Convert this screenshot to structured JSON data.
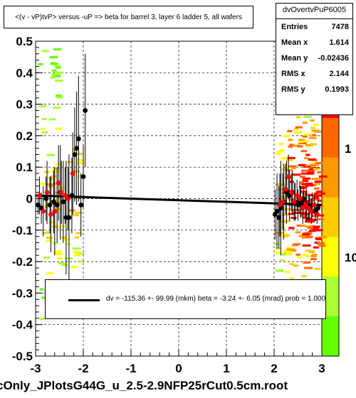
{
  "chart_data": {
    "type": "scatter",
    "title": "<(v - vP)tvP> versus  -uP => beta for barrel 3, layer 6 ladder 5, all  wafers",
    "xlim": [
      -3,
      3
    ],
    "ylim": [
      -0.5,
      0.5
    ],
    "x_ticks": [
      "-3",
      "-2",
      "-1",
      "0",
      "1",
      "2",
      "3"
    ],
    "y_ticks": [
      "-0.5",
      "-0.4",
      "-0.3",
      "-0.2",
      "-0.1",
      "0",
      "0.1",
      "0.2",
      "0.3",
      "0.4",
      "0.5"
    ],
    "z_tick_labels": [
      "1",
      "10"
    ],
    "grid": true,
    "series": [
      {
        "color": "#000000",
        "points": [
          [
            -2.95,
            -0.02
          ],
          [
            -2.88,
            -0.03
          ],
          [
            -2.78,
            0.0
          ],
          [
            -2.7,
            -0.02
          ],
          [
            -2.62,
            -0.01
          ],
          [
            -2.55,
            -0.02
          ],
          [
            -2.48,
            0.02
          ],
          [
            -2.42,
            -0.01
          ],
          [
            -2.36,
            -0.06
          ],
          [
            -2.3,
            -0.06
          ],
          [
            -2.24,
            0.01
          ],
          [
            -2.18,
            0.14
          ],
          [
            -2.14,
            0.16
          ],
          [
            -2.1,
            0.19
          ],
          [
            -2.05,
            -0.02
          ],
          [
            -2.0,
            0.07
          ],
          [
            -1.96,
            0.28
          ],
          [
            2.02,
            -0.05
          ],
          [
            2.06,
            -0.04
          ],
          [
            2.1,
            -0.06
          ],
          [
            2.14,
            -0.03
          ],
          [
            2.2,
            -0.01
          ],
          [
            2.26,
            0.02
          ],
          [
            2.32,
            0.01
          ],
          [
            2.38,
            0.02
          ],
          [
            2.44,
            -0.01
          ],
          [
            2.5,
            -0.02
          ],
          [
            2.56,
            -0.01
          ],
          [
            2.62,
            0.0
          ],
          [
            2.68,
            -0.02
          ],
          [
            2.74,
            -0.03
          ],
          [
            2.8,
            -0.02
          ],
          [
            2.86,
            -0.04
          ],
          [
            2.92,
            -0.03
          ]
        ],
        "errors": [
          0.03,
          0.05,
          0.07,
          0.09,
          0.1,
          0.12,
          0.15,
          0.13,
          0.18,
          0.2,
          0.12,
          0.15,
          0.18,
          0.2,
          0.1,
          0.1,
          0.18,
          0.08,
          0.12,
          0.1,
          0.15,
          0.12,
          0.1,
          0.08,
          0.07,
          0.06,
          0.05,
          0.05,
          0.04,
          0.05,
          0.04,
          0.04,
          0.03,
          0.03
        ]
      },
      {
        "color": "#ff0000",
        "points": [
          [
            -2.92,
            0.01
          ],
          [
            -2.84,
            -0.04
          ],
          [
            -2.76,
            0.02
          ],
          [
            -2.68,
            -0.05
          ],
          [
            -2.6,
            -0.04
          ],
          [
            -2.52,
            0.05
          ],
          [
            -2.46,
            0.02
          ],
          [
            -2.38,
            0.01
          ],
          [
            -2.32,
            0.0
          ],
          [
            -2.22,
            0.08
          ],
          [
            2.12,
            -0.02
          ],
          [
            2.18,
            -0.01
          ],
          [
            2.24,
            0.03
          ],
          [
            2.3,
            0.07
          ],
          [
            2.36,
            0.02
          ],
          [
            2.42,
            -0.01
          ],
          [
            2.48,
            0.01
          ],
          [
            2.54,
            0.0
          ],
          [
            2.6,
            -0.03
          ],
          [
            2.66,
            -0.02
          ],
          [
            2.72,
            -0.03
          ],
          [
            2.78,
            -0.04
          ],
          [
            2.84,
            -0.02
          ],
          [
            2.9,
            -0.05
          ]
        ],
        "errors": [
          0.06,
          0.08,
          0.1,
          0.12,
          0.14,
          0.12,
          0.1,
          0.09,
          0.1,
          0.13,
          0.1,
          0.09,
          0.08,
          0.07,
          0.06,
          0.06,
          0.05,
          0.05,
          0.05,
          0.04,
          0.04,
          0.04,
          0.03,
          0.03
        ]
      }
    ],
    "fit_line": {
      "x": [
        -3,
        3
      ],
      "y": [
        0.01,
        -0.02
      ],
      "color": "#000000"
    },
    "density": {
      "x_range": [
        -3,
        3
      ],
      "y_range": [
        -0.5,
        0.5
      ],
      "clusters": [
        {
          "x": [
            -2.95,
            -2.55
          ],
          "y": [
            -0.38,
            0.5
          ],
          "count": 70
        },
        {
          "x": [
            -2.55,
            -2.1
          ],
          "y": [
            -0.22,
            0.2
          ],
          "count": 30
        },
        {
          "x": [
            2.0,
            2.25
          ],
          "y": [
            -0.25,
            0.22
          ],
          "count": 40
        },
        {
          "x": [
            2.25,
            2.85
          ],
          "y": [
            -0.35,
            0.5
          ],
          "count": 140
        },
        {
          "x": [
            2.5,
            2.95
          ],
          "y": [
            -0.18,
            0.12
          ],
          "count": 90
        }
      ]
    }
  },
  "stats": {
    "name": "dvOvertvPuP6005",
    "rows": [
      {
        "label": "Entries",
        "value": "7478"
      },
      {
        "label": "Mean x",
        "value": "1.614"
      },
      {
        "label": "Mean y",
        "value": "-0.02436"
      },
      {
        "label": "RMS x",
        "value": "2.144"
      },
      {
        "label": "RMS y",
        "value": "0.1993"
      }
    ]
  },
  "fit_legend": "dv = -115.36 +- 99.99 (mkm) beta =   -3.24 +-  6.05 (mrad) prob = 1.000",
  "footer": "cOnly_JPlotsG44G_u_2.5-2.9NFP25rCut0.5cm.root",
  "colors": {
    "palette": [
      "#66ff00",
      "#aaff33",
      "#ffff00",
      "#ffcc00",
      "#ff9900",
      "#ff6600",
      "#ff0000"
    ]
  }
}
